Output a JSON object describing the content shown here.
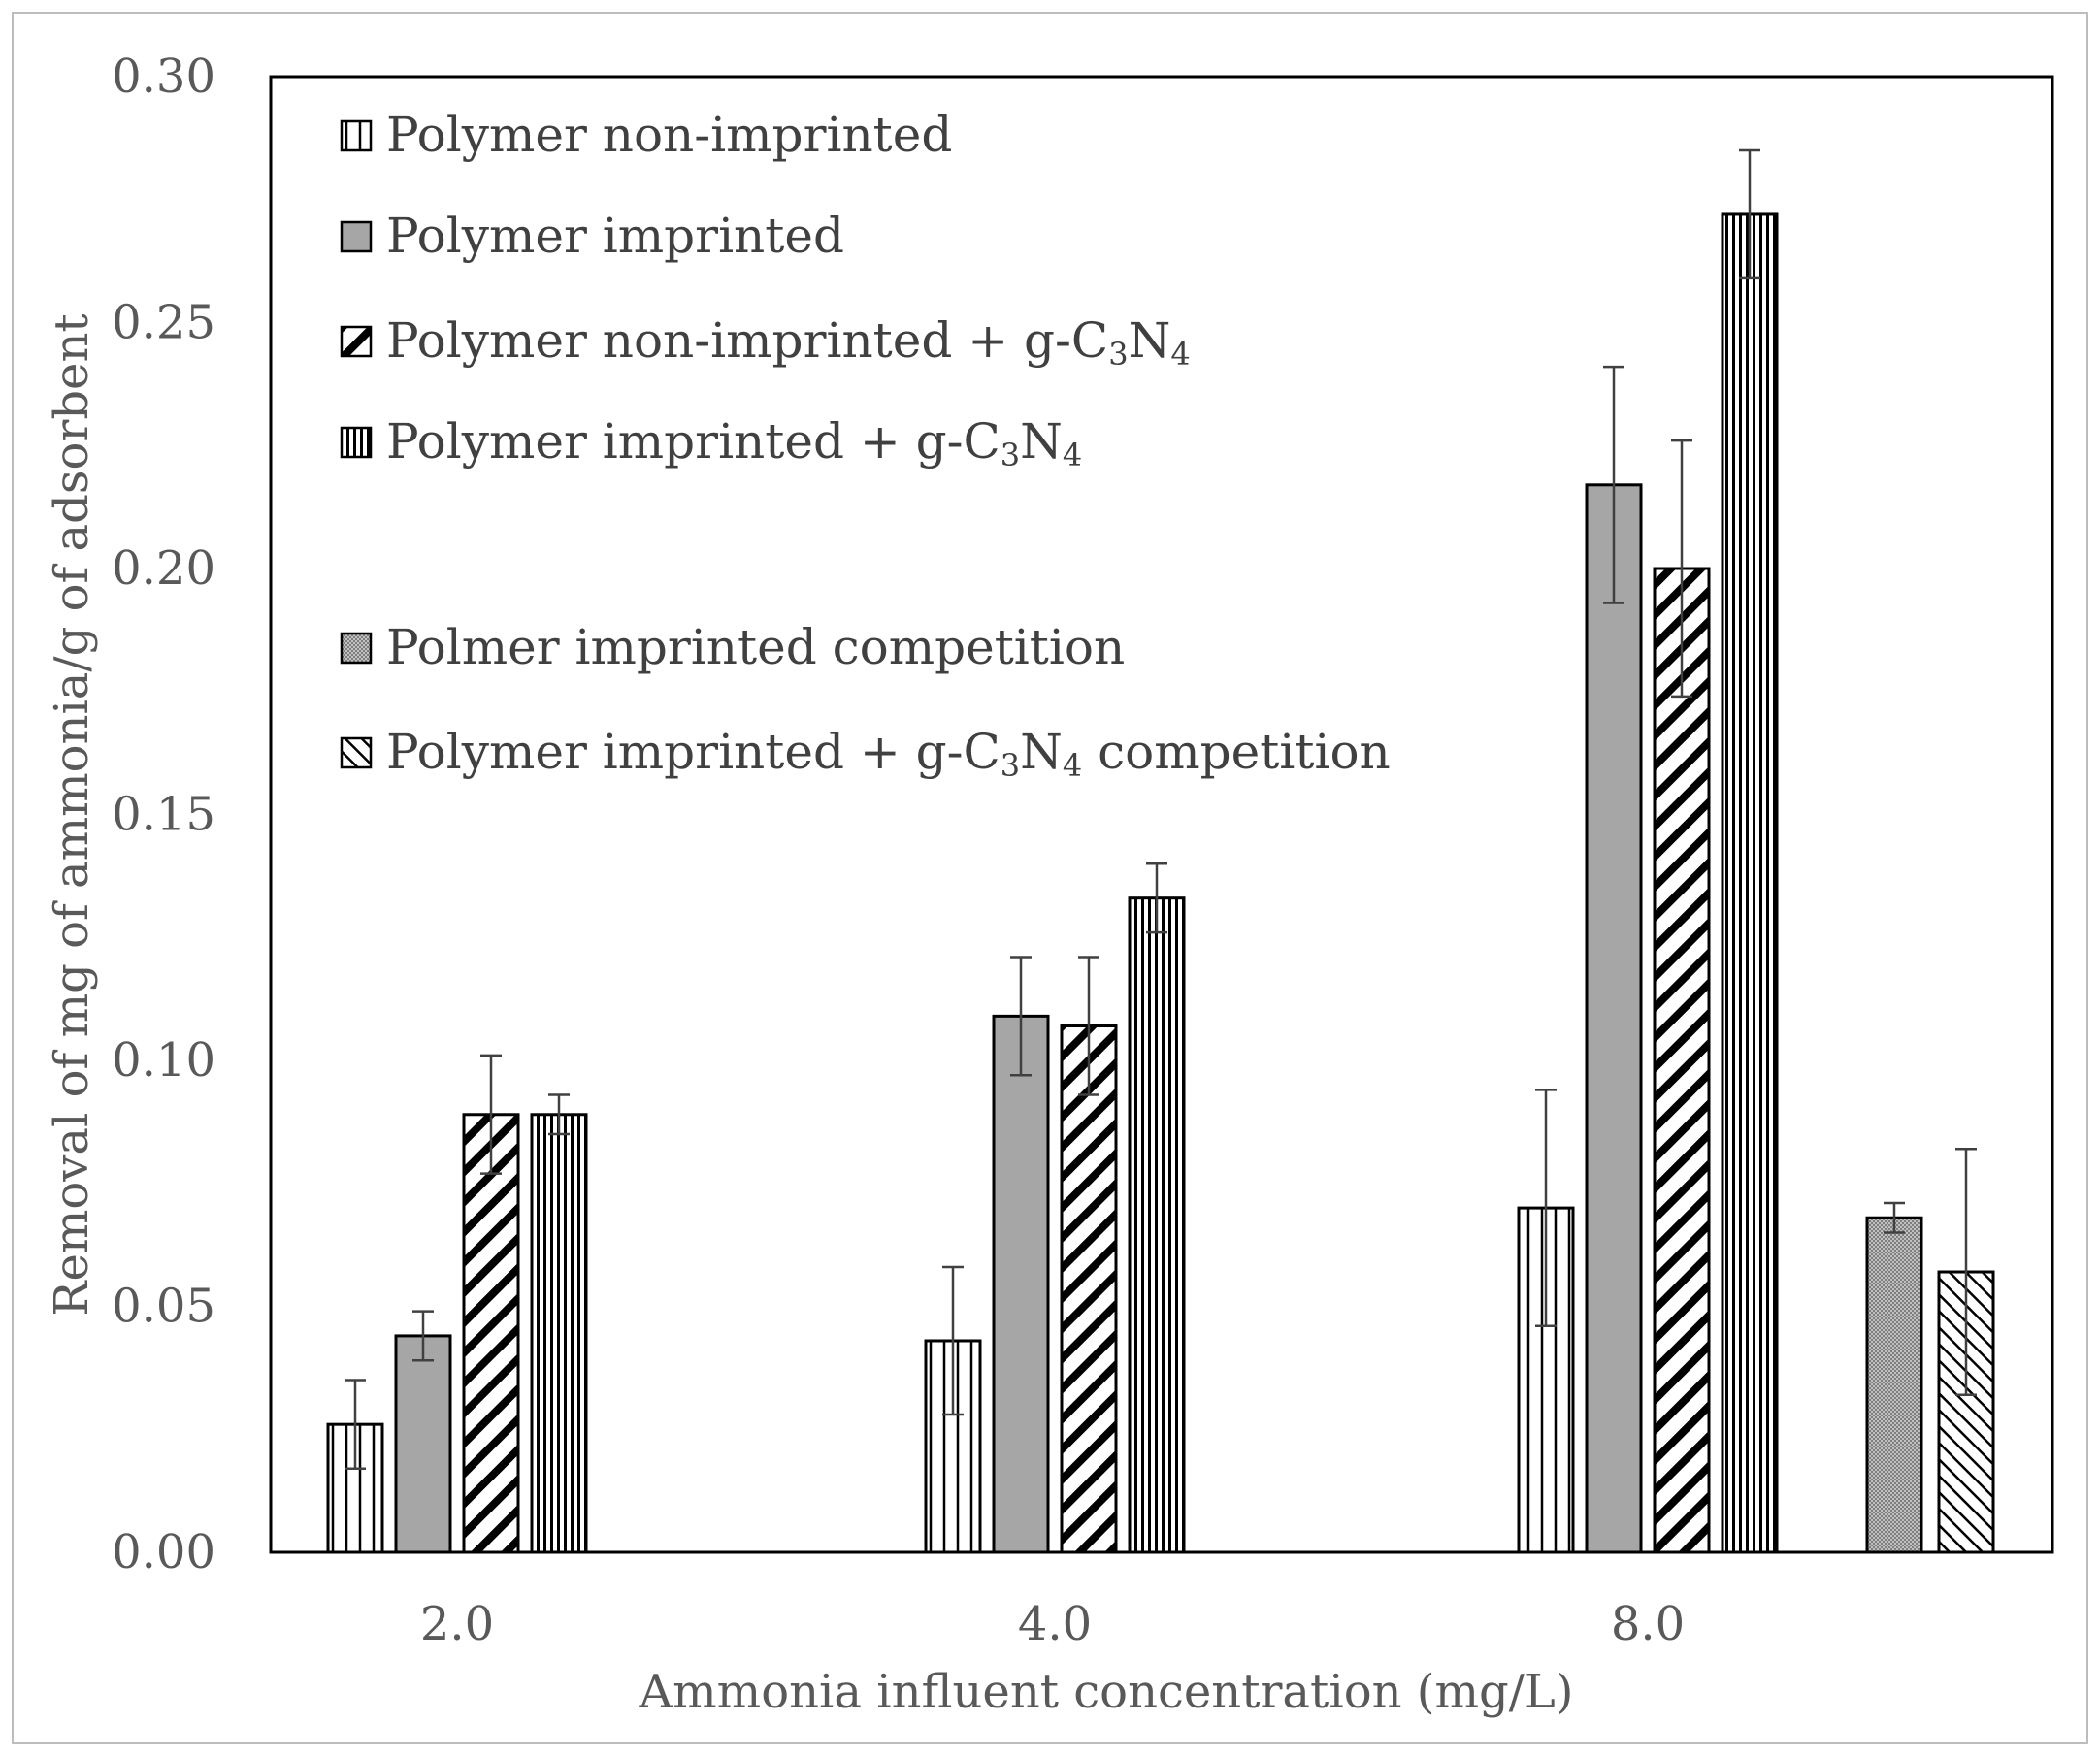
{
  "chart_data": {
    "type": "bar",
    "title": "",
    "xlabel": "Ammonia influent concentration (mg/L)",
    "ylabel": "Removal of mg of ammonia/g of adsorbent",
    "ylim": [
      0,
      0.3
    ],
    "yticks": [
      "0.00",
      "0.05",
      "0.10",
      "0.15",
      "0.20",
      "0.25",
      "0.30"
    ],
    "categories": [
      "2.0",
      "4.0",
      "8.0"
    ],
    "legend_position": "top-left",
    "series": [
      {
        "name": "Polymer non-imprinted",
        "pattern": "vlines-wide",
        "values": [
          0.026,
          0.043,
          0.07
        ],
        "errors": [
          0.009,
          0.015,
          0.024
        ]
      },
      {
        "name": "Polymer imprinted",
        "pattern": "solid-gray",
        "values": [
          0.044,
          0.109,
          0.217
        ],
        "errors": [
          0.005,
          0.012,
          0.024
        ]
      },
      {
        "name": "Polymer non-imprinted + g-C3N4",
        "pattern": "diag-thick",
        "values": [
          0.089,
          0.107,
          0.2
        ],
        "errors": [
          0.012,
          0.014,
          0.026
        ]
      },
      {
        "name": "Polymer imprinted + g-C3N4",
        "pattern": "vlines-dense",
        "values": [
          0.089,
          0.133,
          0.272
        ],
        "errors": [
          0.004,
          0.007,
          0.013
        ]
      },
      {
        "name": "Polmer imprinted competition",
        "pattern": "dotted-gray",
        "values": [
          null,
          null,
          0.068
        ],
        "errors": [
          null,
          null,
          0.003
        ]
      },
      {
        "name": "Polymer imprinted + g-C3N4 competition",
        "pattern": "diag-thin",
        "values": [
          null,
          null,
          0.057
        ],
        "errors": [
          null,
          null,
          0.025
        ]
      }
    ],
    "legend_labels": [
      {
        "pre": "Polymer non-imprinted",
        "sub": "",
        "mid": "",
        "sub2": "",
        "post": ""
      },
      {
        "pre": "Polymer imprinted",
        "sub": "",
        "mid": "",
        "sub2": "",
        "post": ""
      },
      {
        "pre": "Polymer non-imprinted + g-C",
        "sub": "3",
        "mid": "N",
        "sub2": "4",
        "post": ""
      },
      {
        "pre": "Polymer imprinted + g-C",
        "sub": "3",
        "mid": "N",
        "sub2": "4",
        "post": ""
      },
      {
        "pre": "Polmer imprinted competition",
        "sub": "",
        "mid": "",
        "sub2": "",
        "post": ""
      },
      {
        "pre": "Polymer imprinted + g-C",
        "sub": "3",
        "mid": "N",
        "sub2": "4",
        "post": " competition"
      }
    ]
  },
  "colors": {
    "bar_gray": "#a6a6a6",
    "stroke": "#000000",
    "error_bar": "#404040",
    "text": "#595959",
    "legend_text": "#404040",
    "dots": "#7f7f7f"
  }
}
